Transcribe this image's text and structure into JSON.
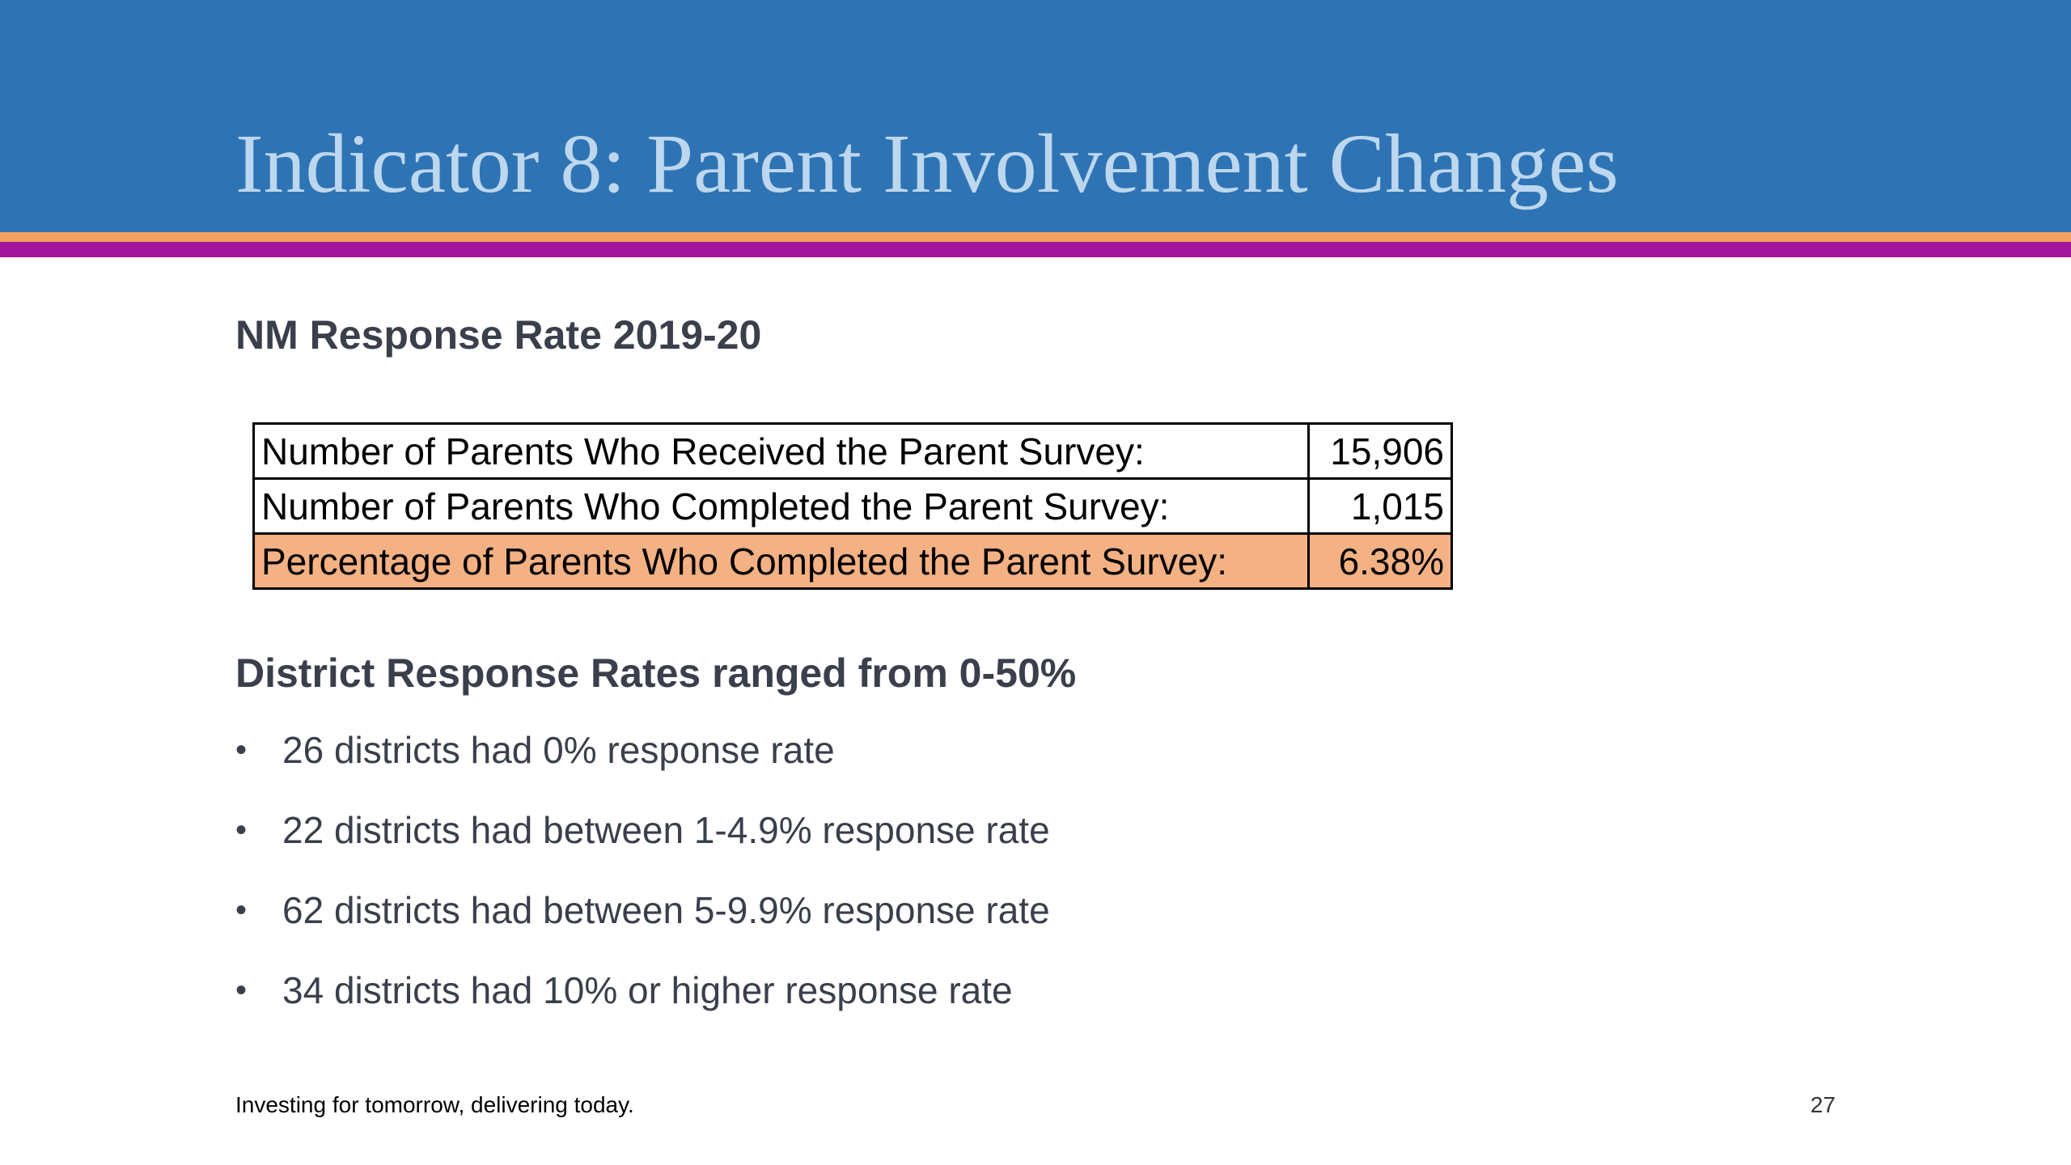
{
  "slide": {
    "title": "Indicator 8:  Parent Involvement Changes",
    "colors": {
      "header_band": "#2e74b5",
      "title_text": "#bdd7ee",
      "stripe_orange": "#f4a261",
      "stripe_magenta": "#a3159a",
      "highlight_row": "#f4b183"
    }
  },
  "response_rate": {
    "heading": "NM Response Rate 2019-20",
    "table": [
      {
        "label": "Number of Parents Who Received the Parent Survey:",
        "value": "15,906"
      },
      {
        "label": "Number of Parents Who Completed the Parent Survey:",
        "value": "1,015"
      },
      {
        "label": "Percentage of Parents Who Completed the Parent Survey:",
        "value": "6.38%"
      }
    ]
  },
  "district_rates": {
    "heading": "District Response Rates ranged from 0-50%",
    "bullets": [
      "26 districts had 0% response rate",
      "22 districts had between 1-4.9% response rate",
      "62 districts had between 5-9.9% response rate",
      "34 districts had 10% or higher response rate"
    ]
  },
  "footer": {
    "tagline": "Investing for tomorrow, delivering today.",
    "page_number": "27"
  }
}
